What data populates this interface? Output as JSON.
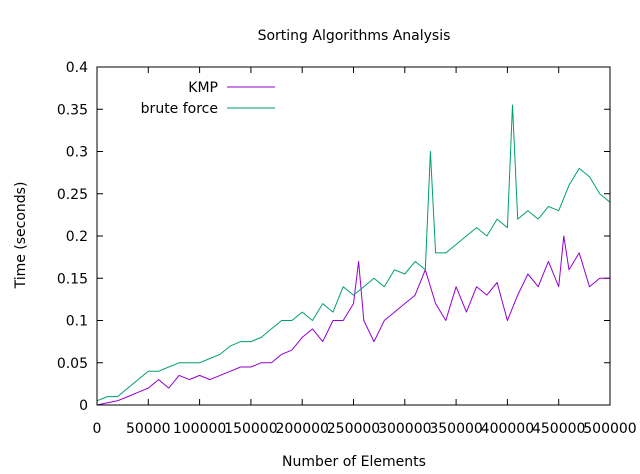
{
  "chart_data": {
    "type": "line",
    "title": "Sorting Algorithms Analysis",
    "xlabel": "Number of Elements",
    "ylabel": "Time (seconds)",
    "xlim": [
      0,
      500000
    ],
    "ylim": [
      0,
      0.4
    ],
    "x_ticks": [
      0,
      50000,
      100000,
      150000,
      200000,
      250000,
      300000,
      350000,
      400000,
      450000,
      500000
    ],
    "x_tick_labels": [
      "0",
      "50000",
      "100000",
      "150000",
      "200000",
      "250000",
      "300000",
      "350000",
      "400000",
      "450000",
      "500000"
    ],
    "y_ticks": [
      0,
      0.05,
      0.1,
      0.15,
      0.2,
      0.25,
      0.3,
      0.35,
      0.4
    ],
    "y_tick_labels": [
      "0",
      "0.05",
      "0.1",
      "0.15",
      "0.2",
      "0.25",
      "0.3",
      "0.35",
      "0.4"
    ],
    "legend_position": "top-left (inside plot)",
    "grid": false,
    "series": [
      {
        "name": "KMP",
        "color": "#9400d3",
        "x": [
          0,
          20000,
          30000,
          40000,
          50000,
          60000,
          70000,
          80000,
          90000,
          100000,
          110000,
          120000,
          130000,
          140000,
          150000,
          160000,
          170000,
          180000,
          190000,
          200000,
          210000,
          220000,
          230000,
          240000,
          250000,
          255000,
          260000,
          270000,
          280000,
          290000,
          300000,
          310000,
          320000,
          330000,
          340000,
          350000,
          360000,
          370000,
          380000,
          390000,
          400000,
          410000,
          420000,
          430000,
          440000,
          450000,
          455000,
          460000,
          470000,
          480000,
          490000,
          500000
        ],
        "y": [
          0,
          0.005,
          0.01,
          0.015,
          0.02,
          0.03,
          0.02,
          0.035,
          0.03,
          0.035,
          0.03,
          0.035,
          0.04,
          0.045,
          0.045,
          0.05,
          0.05,
          0.06,
          0.065,
          0.08,
          0.09,
          0.075,
          0.1,
          0.1,
          0.12,
          0.17,
          0.1,
          0.075,
          0.1,
          0.11,
          0.12,
          0.13,
          0.16,
          0.12,
          0.1,
          0.14,
          0.11,
          0.14,
          0.13,
          0.145,
          0.1,
          0.13,
          0.155,
          0.14,
          0.17,
          0.14,
          0.2,
          0.16,
          0.18,
          0.14,
          0.15,
          0.15
        ]
      },
      {
        "name": "brute force",
        "color": "#009e73",
        "x": [
          0,
          10000,
          20000,
          30000,
          40000,
          50000,
          60000,
          70000,
          80000,
          90000,
          100000,
          110000,
          120000,
          130000,
          140000,
          150000,
          160000,
          170000,
          180000,
          190000,
          200000,
          210000,
          220000,
          230000,
          240000,
          250000,
          260000,
          270000,
          280000,
          290000,
          300000,
          310000,
          320000,
          325000,
          330000,
          340000,
          350000,
          360000,
          370000,
          380000,
          390000,
          400000,
          405000,
          410000,
          420000,
          430000,
          440000,
          450000,
          460000,
          470000,
          480000,
          490000,
          500000
        ],
        "y": [
          0.005,
          0.01,
          0.01,
          0.02,
          0.03,
          0.04,
          0.04,
          0.045,
          0.05,
          0.05,
          0.05,
          0.055,
          0.06,
          0.07,
          0.075,
          0.075,
          0.08,
          0.09,
          0.1,
          0.1,
          0.11,
          0.1,
          0.12,
          0.11,
          0.14,
          0.13,
          0.14,
          0.15,
          0.14,
          0.16,
          0.155,
          0.17,
          0.16,
          0.3,
          0.18,
          0.18,
          0.19,
          0.2,
          0.21,
          0.2,
          0.22,
          0.21,
          0.355,
          0.22,
          0.23,
          0.22,
          0.235,
          0.23,
          0.26,
          0.28,
          0.27,
          0.25,
          0.24
        ]
      }
    ]
  }
}
